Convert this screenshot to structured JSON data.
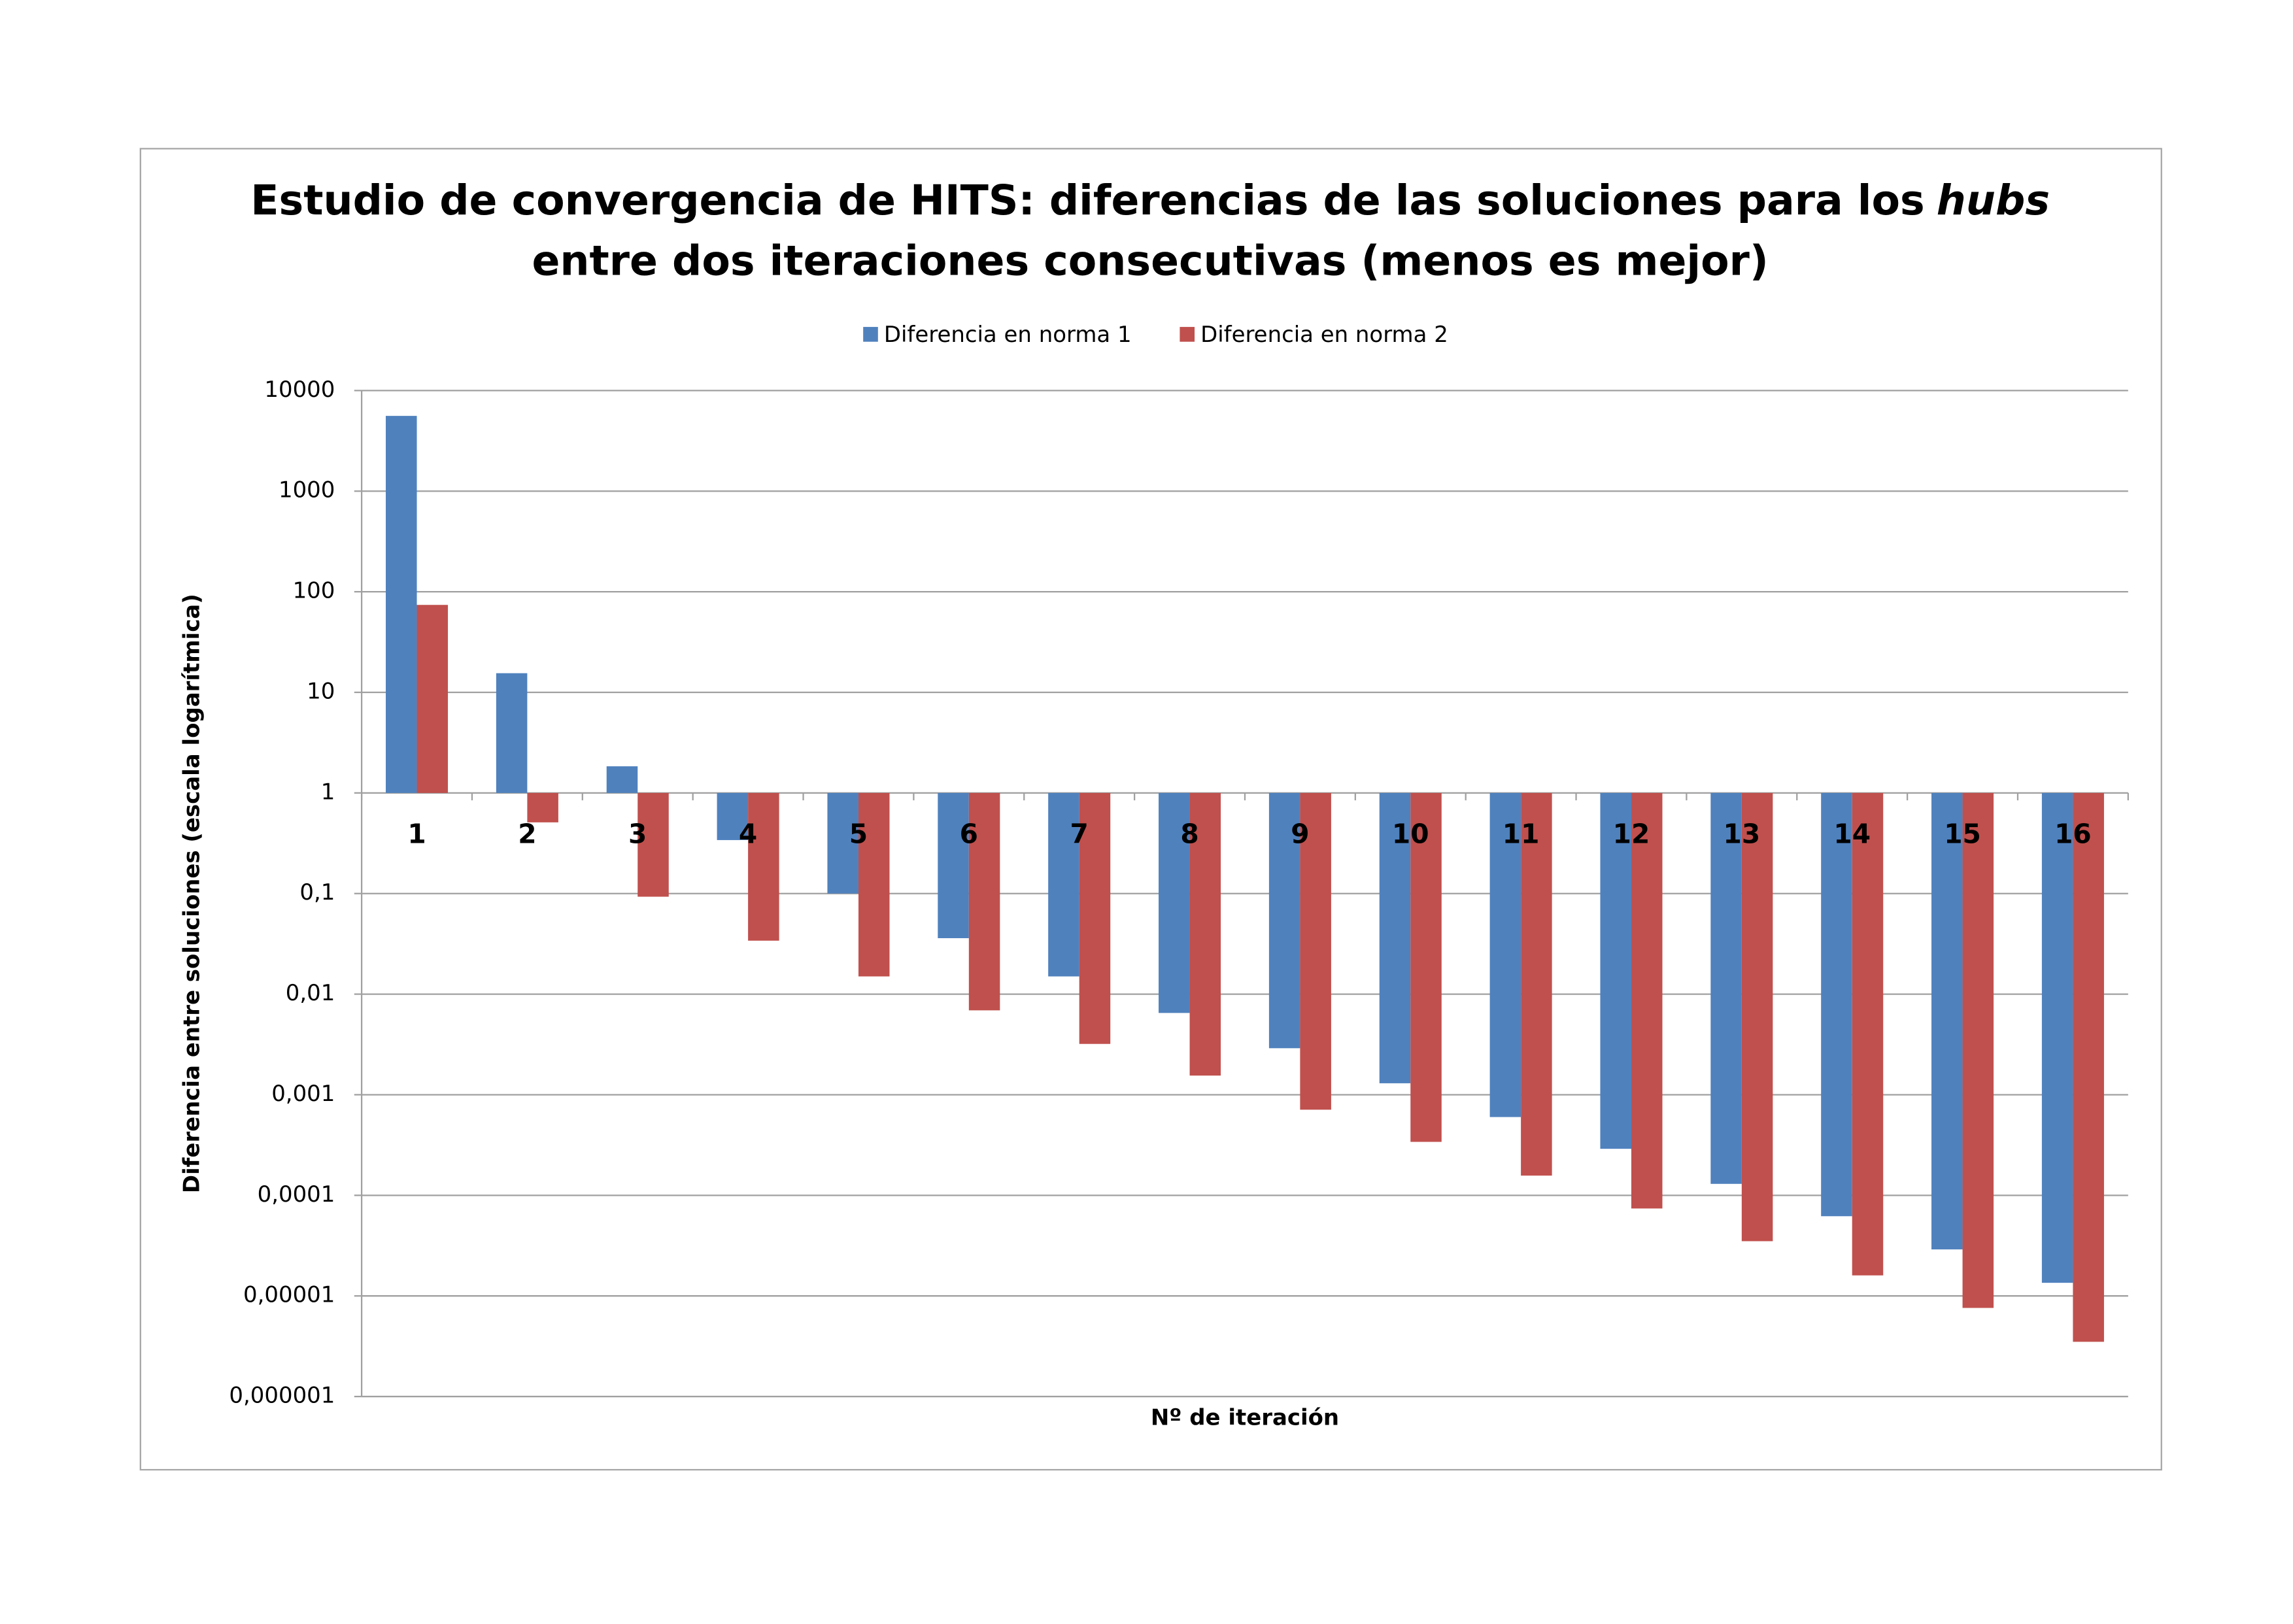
{
  "chart_data": {
    "type": "bar",
    "title": [
      "Estudio de convergencia de HITS: diferencias de las soluciones para los",
      "hubs",
      "entre dos iteraciones consecutivas (menos es mejor)"
    ],
    "x_label": "Nº de iteración",
    "y_label": "Diferencia entre soluciones (escala logarítmica)",
    "categories": [
      "1",
      "2",
      "3",
      "4",
      "5",
      "6",
      "7",
      "8",
      "9",
      "10",
      "11",
      "12",
      "13",
      "14",
      "15",
      "16"
    ],
    "series": [
      {
        "name": "Diferencia en norma 1",
        "color": "#4f81bd",
        "values": [
          5600,
          15.5,
          1.84,
          0.34,
          0.1,
          0.036,
          0.015,
          0.0065,
          0.0029,
          0.0013,
          0.0006,
          0.00029,
          0.00013,
          6.2e-05,
          2.9e-05,
          1.35e-05
        ]
      },
      {
        "name": "Diferencia en norma 2",
        "color": "#c0504d",
        "values": [
          74,
          0.51,
          0.093,
          0.034,
          0.015,
          0.0069,
          0.0032,
          0.00155,
          0.00071,
          0.00034,
          0.000157,
          7.4e-05,
          3.5e-05,
          1.6e-05,
          7.6e-06,
          3.5e-06
        ]
      }
    ],
    "log_scale": true,
    "ylim": [
      1e-06,
      10000
    ],
    "yticks": [
      {
        "value": 1e-06,
        "label": "0,000001"
      },
      {
        "value": 1e-05,
        "label": "0,00001"
      },
      {
        "value": 0.0001,
        "label": "0,0001"
      },
      {
        "value": 0.001,
        "label": "0,001"
      },
      {
        "value": 0.01,
        "label": "0,01"
      },
      {
        "value": 0.1,
        "label": "0,1"
      },
      1,
      10,
      100,
      1000,
      10000
    ],
    "grid": true,
    "legend": "top"
  }
}
